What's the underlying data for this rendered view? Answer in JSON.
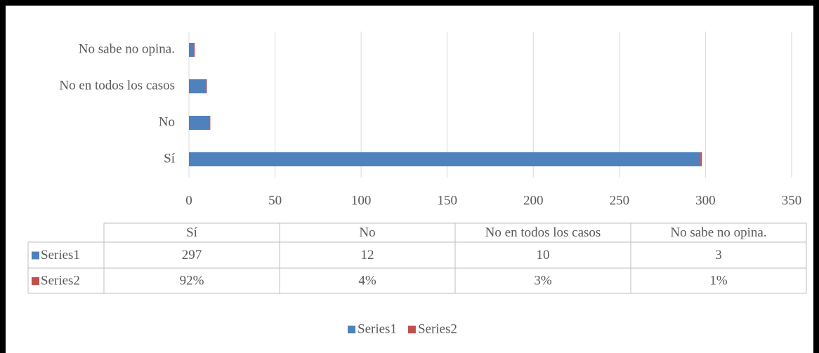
{
  "chart_data": {
    "type": "bar",
    "horizontal": true,
    "stacked": true,
    "categories": [
      "Sí",
      "No",
      "No en todos los casos",
      "No sabe no opina."
    ],
    "series": [
      {
        "name": "Series1",
        "color": "#4f81bd",
        "values": [
          297,
          12,
          10,
          3
        ]
      },
      {
        "name": "Series2",
        "color": "#c0504d",
        "values": [
          0.92,
          0.04,
          0.03,
          0.01
        ],
        "value_labels": [
          "92%",
          "4%",
          "3%",
          "1%"
        ]
      }
    ],
    "xlim": [
      0,
      350
    ],
    "xticks": [
      0,
      50,
      100,
      150,
      200,
      250,
      300,
      350
    ],
    "grid": true,
    "legend": "bottom",
    "data_table": true
  }
}
